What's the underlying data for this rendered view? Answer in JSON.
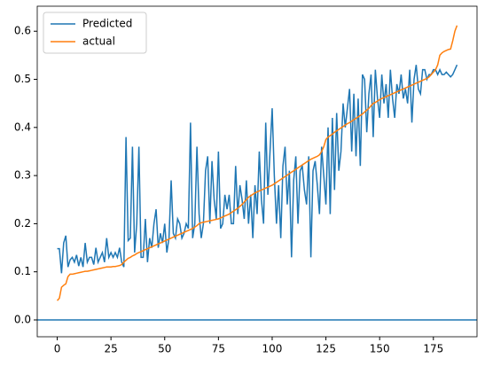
{
  "chart_data": {
    "type": "line",
    "x": [
      0,
      1,
      2,
      3,
      4,
      5,
      6,
      7,
      8,
      9,
      10,
      11,
      12,
      13,
      14,
      15,
      16,
      17,
      18,
      19,
      20,
      21,
      22,
      23,
      24,
      25,
      26,
      27,
      28,
      29,
      30,
      31,
      32,
      33,
      34,
      35,
      36,
      37,
      38,
      39,
      40,
      41,
      42,
      43,
      44,
      45,
      46,
      47,
      48,
      49,
      50,
      51,
      52,
      53,
      54,
      55,
      56,
      57,
      58,
      59,
      60,
      61,
      62,
      63,
      64,
      65,
      66,
      67,
      68,
      69,
      70,
      71,
      72,
      73,
      74,
      75,
      76,
      77,
      78,
      79,
      80,
      81,
      82,
      83,
      84,
      85,
      86,
      87,
      88,
      89,
      90,
      91,
      92,
      93,
      94,
      95,
      96,
      97,
      98,
      99,
      100,
      101,
      102,
      103,
      104,
      105,
      106,
      107,
      108,
      109,
      110,
      111,
      112,
      113,
      114,
      115,
      116,
      117,
      118,
      119,
      120,
      121,
      122,
      123,
      124,
      125,
      126,
      127,
      128,
      129,
      130,
      131,
      132,
      133,
      134,
      135,
      136,
      137,
      138,
      139,
      140,
      141,
      142,
      143,
      144,
      145,
      146,
      147,
      148,
      149,
      150,
      151,
      152,
      153,
      154,
      155,
      156,
      157,
      158,
      159,
      160,
      161,
      162,
      163,
      164,
      165,
      166,
      167,
      168,
      169,
      170,
      171,
      172,
      173,
      174,
      175,
      176,
      177,
      178,
      179,
      180,
      181,
      182,
      183,
      184,
      185,
      186
    ],
    "series": [
      {
        "name": "Predicted",
        "color": "#1f77b4",
        "values": [
          0.148,
          0.148,
          0.097,
          0.16,
          0.175,
          0.11,
          0.125,
          0.13,
          0.12,
          0.135,
          0.112,
          0.13,
          0.11,
          0.16,
          0.12,
          0.13,
          0.13,
          0.115,
          0.15,
          0.12,
          0.13,
          0.14,
          0.12,
          0.17,
          0.13,
          0.14,
          0.13,
          0.14,
          0.13,
          0.15,
          0.12,
          0.11,
          0.38,
          0.165,
          0.17,
          0.36,
          0.14,
          0.2,
          0.36,
          0.13,
          0.13,
          0.21,
          0.12,
          0.17,
          0.15,
          0.2,
          0.23,
          0.15,
          0.18,
          0.16,
          0.2,
          0.14,
          0.17,
          0.29,
          0.18,
          0.17,
          0.21,
          0.2,
          0.17,
          0.18,
          0.2,
          0.19,
          0.41,
          0.17,
          0.2,
          0.36,
          0.22,
          0.17,
          0.2,
          0.31,
          0.34,
          0.2,
          0.33,
          0.25,
          0.21,
          0.35,
          0.19,
          0.2,
          0.26,
          0.23,
          0.26,
          0.2,
          0.2,
          0.32,
          0.22,
          0.28,
          0.25,
          0.21,
          0.29,
          0.2,
          0.26,
          0.17,
          0.28,
          0.22,
          0.35,
          0.25,
          0.2,
          0.41,
          0.26,
          0.35,
          0.44,
          0.3,
          0.2,
          0.28,
          0.17,
          0.32,
          0.36,
          0.24,
          0.31,
          0.13,
          0.29,
          0.34,
          0.2,
          0.31,
          0.32,
          0.27,
          0.24,
          0.34,
          0.13,
          0.31,
          0.33,
          0.28,
          0.22,
          0.36,
          0.3,
          0.24,
          0.4,
          0.22,
          0.42,
          0.27,
          0.43,
          0.31,
          0.35,
          0.45,
          0.4,
          0.44,
          0.48,
          0.35,
          0.47,
          0.34,
          0.46,
          0.32,
          0.51,
          0.5,
          0.39,
          0.47,
          0.51,
          0.38,
          0.52,
          0.46,
          0.42,
          0.51,
          0.45,
          0.49,
          0.42,
          0.52,
          0.46,
          0.42,
          0.49,
          0.47,
          0.51,
          0.46,
          0.48,
          0.45,
          0.52,
          0.41,
          0.5,
          0.53,
          0.48,
          0.47,
          0.52,
          0.52,
          0.5,
          0.51,
          0.51,
          0.52,
          0.52,
          0.51,
          0.52,
          0.51,
          0.51,
          0.515,
          0.51,
          0.505,
          0.51,
          0.52,
          0.53
        ]
      },
      {
        "name": "actual",
        "color": "#ff7f0e",
        "values": [
          0.04,
          0.045,
          0.068,
          0.072,
          0.075,
          0.09,
          0.095,
          0.095,
          0.096,
          0.097,
          0.098,
          0.099,
          0.1,
          0.101,
          0.101,
          0.102,
          0.103,
          0.104,
          0.105,
          0.106,
          0.107,
          0.108,
          0.109,
          0.11,
          0.11,
          0.11,
          0.111,
          0.111,
          0.112,
          0.113,
          0.115,
          0.12,
          0.124,
          0.128,
          0.13,
          0.133,
          0.135,
          0.138,
          0.14,
          0.142,
          0.144,
          0.146,
          0.148,
          0.15,
          0.152,
          0.154,
          0.156,
          0.158,
          0.16,
          0.162,
          0.164,
          0.166,
          0.168,
          0.17,
          0.172,
          0.174,
          0.176,
          0.178,
          0.18,
          0.182,
          0.184,
          0.186,
          0.188,
          0.19,
          0.193,
          0.196,
          0.2,
          0.202,
          0.203,
          0.204,
          0.205,
          0.206,
          0.207,
          0.208,
          0.209,
          0.21,
          0.212,
          0.214,
          0.216,
          0.218,
          0.22,
          0.223,
          0.226,
          0.229,
          0.232,
          0.236,
          0.24,
          0.245,
          0.25,
          0.255,
          0.258,
          0.261,
          0.264,
          0.266,
          0.268,
          0.27,
          0.272,
          0.274,
          0.276,
          0.278,
          0.28,
          0.283,
          0.286,
          0.289,
          0.292,
          0.295,
          0.298,
          0.301,
          0.304,
          0.307,
          0.31,
          0.313,
          0.316,
          0.319,
          0.322,
          0.325,
          0.328,
          0.331,
          0.334,
          0.336,
          0.338,
          0.34,
          0.343,
          0.35,
          0.36,
          0.375,
          0.38,
          0.383,
          0.386,
          0.39,
          0.393,
          0.396,
          0.399,
          0.402,
          0.405,
          0.408,
          0.41,
          0.413,
          0.416,
          0.419,
          0.422,
          0.425,
          0.428,
          0.432,
          0.436,
          0.44,
          0.445,
          0.45,
          0.452,
          0.455,
          0.458,
          0.46,
          0.462,
          0.464,
          0.466,
          0.468,
          0.47,
          0.472,
          0.474,
          0.476,
          0.478,
          0.48,
          0.482,
          0.484,
          0.486,
          0.488,
          0.49,
          0.492,
          0.494,
          0.496,
          0.498,
          0.5,
          0.502,
          0.505,
          0.51,
          0.515,
          0.52,
          0.53,
          0.55,
          0.555,
          0.558,
          0.56,
          0.562,
          0.563,
          0.58,
          0.6,
          0.612
        ]
      }
    ],
    "hlines": [
      0
    ],
    "hline_color": "#1f77b4",
    "xlim": [
      -9.3,
      195.3
    ],
    "xticks": [
      0,
      25,
      50,
      75,
      100,
      125,
      150,
      175
    ],
    "ylim": [
      -0.035,
      0.652
    ],
    "yticks": [
      {
        "value": 0,
        "label": "0.0"
      },
      0.1,
      0.2,
      0.3,
      0.4,
      0.5,
      0.6
    ],
    "legend": "upper left",
    "grid": false
  }
}
